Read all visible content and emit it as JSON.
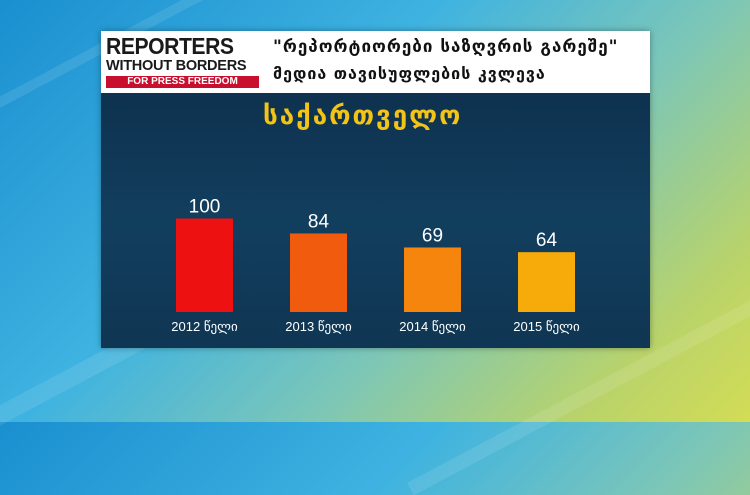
{
  "logo": {
    "line1": "REPORTERS",
    "line2": "WITHOUT BORDERS",
    "line3": "FOR PRESS FREEDOM"
  },
  "header": {
    "title_line1": "\"რეპორტიორები საზღვრის გარეშე\"",
    "title_line2": "მედია თავისუფლების კვლევა"
  },
  "colors": {
    "panel_bg": "#0f3653",
    "title_color": "#f3c316",
    "logo_red": "#c8102e"
  },
  "chart_data": {
    "type": "bar",
    "title": "საქართველო",
    "categories": [
      "2012 წელი",
      "2013 წელი",
      "2014 წელი",
      "2015 წელი"
    ],
    "values": [
      100,
      84,
      69,
      64
    ],
    "bar_colors": [
      "#ee1111",
      "#f15b0e",
      "#f5850d",
      "#f6ab0a"
    ],
    "xlabel": "",
    "ylabel": "",
    "grid": false,
    "legend": "none",
    "value_labels": [
      "100",
      "84",
      "69",
      "64"
    ]
  }
}
